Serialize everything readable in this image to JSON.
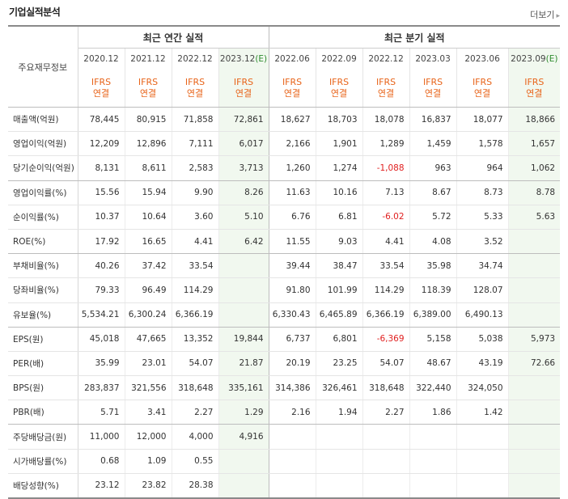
{
  "page": {
    "title": "기업실적분석",
    "more_label": "더보기",
    "more_icon": "chevron-right-icon"
  },
  "table": {
    "row_header": "주요재무정보",
    "annual_header": "최근 연간 실적",
    "quarter_header": "최근 분기 실적",
    "periods": [
      {
        "label": "2020.12",
        "est": false
      },
      {
        "label": "2021.12",
        "est": false
      },
      {
        "label": "2022.12",
        "est": false
      },
      {
        "label": "2023.12",
        "est": true
      },
      {
        "label": "2022.06",
        "est": false
      },
      {
        "label": "2022.09",
        "est": false
      },
      {
        "label": "2022.12",
        "est": false
      },
      {
        "label": "2023.03",
        "est": false
      },
      {
        "label": "2023.06",
        "est": false
      },
      {
        "label": "2023.09",
        "est": true
      }
    ],
    "est_mark": "(E)",
    "ifrs_line1": "IFRS",
    "ifrs_line2": "연결",
    "rows": [
      {
        "label": "매출액(억원)",
        "values": [
          "78,445",
          "80,915",
          "71,858",
          "72,861",
          "18,627",
          "18,703",
          "18,078",
          "16,837",
          "18,077",
          "18,866"
        ]
      },
      {
        "label": "영업이익(억원)",
        "values": [
          "12,209",
          "12,896",
          "7,111",
          "6,017",
          "2,166",
          "1,901",
          "1,289",
          "1,459",
          "1,578",
          "1,657"
        ]
      },
      {
        "label": "당기순이익(억원)",
        "values": [
          "8,131",
          "8,611",
          "2,583",
          "3,713",
          "1,260",
          "1,274",
          "-1,088",
          "963",
          "964",
          "1,062"
        ]
      },
      {
        "label": "영업이익률(%)",
        "values": [
          "15.56",
          "15.94",
          "9.90",
          "8.26",
          "11.63",
          "10.16",
          "7.13",
          "8.67",
          "8.73",
          "8.78"
        ]
      },
      {
        "label": "순이익률(%)",
        "values": [
          "10.37",
          "10.64",
          "3.60",
          "5.10",
          "6.76",
          "6.81",
          "-6.02",
          "5.72",
          "5.33",
          "5.63"
        ]
      },
      {
        "label": "ROE(%)",
        "values": [
          "17.92",
          "16.65",
          "4.41",
          "6.42",
          "11.55",
          "9.03",
          "4.41",
          "4.08",
          "3.52",
          ""
        ]
      },
      {
        "label": "부채비율(%)",
        "values": [
          "40.26",
          "37.42",
          "33.54",
          "",
          "39.44",
          "38.47",
          "33.54",
          "35.98",
          "34.74",
          ""
        ]
      },
      {
        "label": "당좌비율(%)",
        "values": [
          "79.33",
          "96.49",
          "114.29",
          "",
          "91.80",
          "101.99",
          "114.29",
          "118.39",
          "128.07",
          ""
        ]
      },
      {
        "label": "유보율(%)",
        "values": [
          "5,534.21",
          "6,300.24",
          "6,366.19",
          "",
          "6,330.43",
          "6,465.89",
          "6,366.19",
          "6,389.00",
          "6,490.13",
          ""
        ]
      },
      {
        "label": "EPS(원)",
        "values": [
          "45,018",
          "47,665",
          "13,352",
          "19,844",
          "6,737",
          "6,801",
          "-6,369",
          "5,158",
          "5,038",
          "5,973"
        ]
      },
      {
        "label": "PER(배)",
        "values": [
          "35.99",
          "23.01",
          "54.07",
          "21.87",
          "20.19",
          "23.25",
          "54.07",
          "48.67",
          "43.19",
          "72.66"
        ]
      },
      {
        "label": "BPS(원)",
        "values": [
          "283,837",
          "321,556",
          "318,648",
          "335,161",
          "314,386",
          "326,461",
          "318,648",
          "322,440",
          "324,050",
          ""
        ]
      },
      {
        "label": "PBR(배)",
        "values": [
          "5.71",
          "3.41",
          "2.27",
          "1.29",
          "2.16",
          "1.94",
          "2.27",
          "1.86",
          "1.42",
          ""
        ]
      },
      {
        "label": "주당배당금(원)",
        "values": [
          "11,000",
          "12,000",
          "4,000",
          "4,916",
          "",
          "",
          "",
          "",
          "",
          ""
        ]
      },
      {
        "label": "시가배당률(%)",
        "values": [
          "0.68",
          "1.09",
          "0.55",
          "",
          "",
          "",
          "",
          "",
          "",
          ""
        ]
      },
      {
        "label": "배당성향(%)",
        "values": [
          "23.12",
          "23.82",
          "28.38",
          "",
          "",
          "",
          "",
          "",
          "",
          ""
        ]
      }
    ]
  },
  "colors": {
    "ifrs": "#e8641a",
    "negative": "#e01f1f",
    "estimate_bg": "#f1f8ef",
    "estimate_mark": "#2e8b2e"
  }
}
